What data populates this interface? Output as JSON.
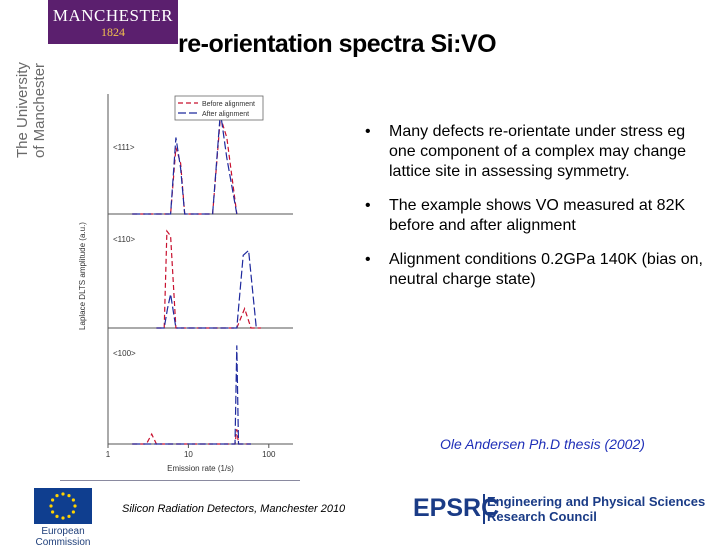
{
  "logo": {
    "name": "MANCHESTER",
    "year": "1824",
    "vertical_line1": "The University",
    "vertical_line2": "of Manchester"
  },
  "slide": {
    "title": "re-orientation spectra Si:VO"
  },
  "bullets": [
    "Many defects re-orientate under stress eg one component of a complex may change lattice site in assessing symmetry.",
    "The example shows VO measured at 82K before and after alignment",
    "Alignment conditions 0.2GPa 140K (bias on, neutral charge state)"
  ],
  "bullet_symbol": "•",
  "citation": "Ole Andersen Ph.D thesis (2002)",
  "footer": {
    "text": "Silicon Radiation Detectors, Manchester 2010"
  },
  "eu_logo": {
    "caption": "European Commission"
  },
  "epsrc": {
    "name": "EPSRC",
    "full_line1": "Engineering and Physical Sciences",
    "full_line2": "Research Council"
  },
  "colors": {
    "title": "#000000",
    "citation": "#1f2fb8",
    "manchester_purple": "#5b1f6e",
    "manchester_gold": "#f2c14e",
    "epsrc_blue": "#1a3b86",
    "before_series": "#c8102e",
    "after_series": "#1f2a9e"
  },
  "chart_data": {
    "type": "line",
    "xlabel": "Emission rate (1/s)",
    "ylabel": "Laplace DLTS amplitude (a.u.)",
    "xscale": "log",
    "xlim": [
      1,
      200
    ],
    "xticks": [
      "1",
      "10",
      "100"
    ],
    "legend": [
      "Before alignment",
      "After alignment"
    ],
    "legend_position": "top-right",
    "panels": [
      {
        "label": "<111>",
        "series": [
          {
            "name": "Before alignment",
            "x": [
              2,
              6,
              7,
              8,
              9,
              20,
              25,
              30,
              40
            ],
            "y": [
              0,
              0,
              0.65,
              0.5,
              0,
              0,
              0.95,
              0.75,
              0
            ]
          },
          {
            "name": "After alignment",
            "x": [
              2,
              6,
              7,
              8,
              9,
              20,
              25,
              30,
              40
            ],
            "y": [
              0,
              0,
              0.75,
              0.45,
              0,
              0,
              1.0,
              0.55,
              0
            ]
          }
        ]
      },
      {
        "label": "<110>",
        "series": [
          {
            "name": "Before alignment",
            "x": [
              4,
              5,
              5.4,
              6,
              7,
              10,
              20,
              40,
              50,
              60,
              80
            ],
            "y": [
              0,
              0,
              1.0,
              0.95,
              0,
              0,
              0,
              0,
              0.2,
              0,
              0
            ]
          },
          {
            "name": "After alignment",
            "x": [
              4,
              5,
              5.5,
              6,
              7,
              10,
              20,
              40,
              48,
              56,
              70
            ],
            "y": [
              0,
              0,
              0.2,
              0.35,
              0,
              0,
              0,
              0,
              0.75,
              0.8,
              0
            ]
          }
        ]
      },
      {
        "label": "<100>",
        "series": [
          {
            "name": "Before alignment",
            "x": [
              2,
              3,
              3.5,
              4,
              10,
              20,
              38,
              40,
              42,
              60
            ],
            "y": [
              0,
              0,
              0.1,
              0,
              0,
              0,
              0,
              0.15,
              0,
              0
            ]
          },
          {
            "name": "After alignment",
            "x": [
              2,
              10,
              20,
              38,
              40,
              42,
              60
            ],
            "y": [
              0,
              0,
              0,
              0,
              1.0,
              0,
              0
            ]
          }
        ]
      }
    ]
  }
}
